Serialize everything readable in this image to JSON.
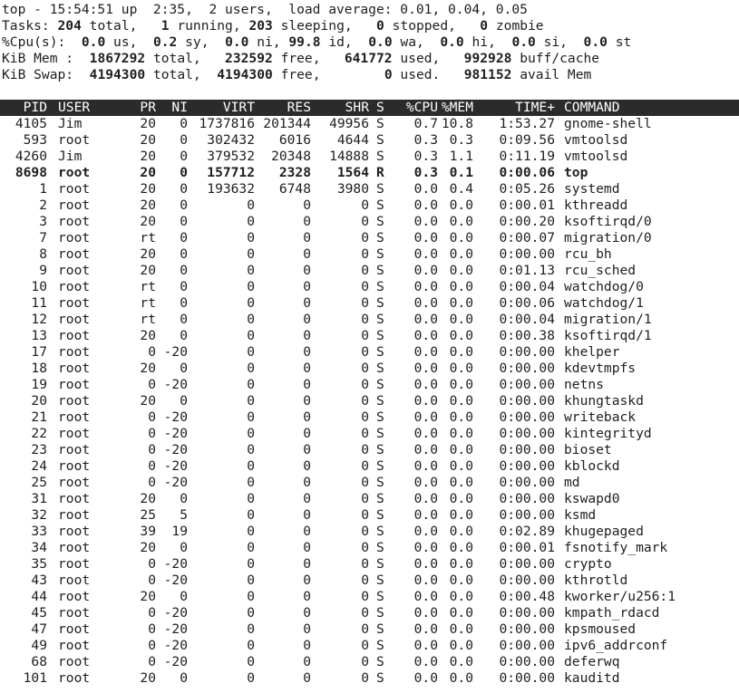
{
  "summary": {
    "line1": "top - 15:54:51 up  2:35,  2 users,  load average: 0.01, 0.04, 0.05",
    "tasks": {
      "label": "Tasks:",
      "total": "204",
      "total_l": "total,",
      "running": "1",
      "running_l": "running,",
      "sleeping": "203",
      "sleeping_l": "sleeping,",
      "stopped": "0",
      "stopped_l": "stopped,",
      "zombie": "0",
      "zombie_l": "zombie"
    },
    "cpu": {
      "label": "%Cpu(s):",
      "us": "0.0",
      "us_l": "us,",
      "sy": "0.2",
      "sy_l": "sy,",
      "ni": "0.0",
      "ni_l": "ni,",
      "id": "99.8",
      "id_l": "id,",
      "wa": "0.0",
      "wa_l": "wa,",
      "hi": "0.0",
      "hi_l": "hi,",
      "si": "0.0",
      "si_l": "si,",
      "st": "0.0",
      "st_l": "st"
    },
    "mem": {
      "label": "KiB Mem :",
      "total": "1867292",
      "total_l": "total,",
      "free": "232592",
      "free_l": "free,",
      "used": "641772",
      "used_l": "used,",
      "cache": "992928",
      "cache_l": "buff/cache"
    },
    "swap": {
      "label": "KiB Swap:",
      "total": "4194300",
      "total_l": "total,",
      "free": "4194300",
      "free_l": "free,",
      "used": "0",
      "used_l": "used.",
      "avail": "981152",
      "avail_l": "avail Mem"
    }
  },
  "columns": [
    "PID",
    "USER",
    "PR",
    "NI",
    "VIRT",
    "RES",
    "SHR",
    "S",
    "%CPU",
    "%MEM",
    "TIME+",
    "COMMAND"
  ],
  "processes": [
    [
      "4105",
      "Jim",
      "20",
      "0",
      "1737816",
      "201344",
      "49956",
      "S",
      "0.7",
      "10.8",
      "1:53.27",
      "gnome-shell"
    ],
    [
      "593",
      "root",
      "20",
      "0",
      "302432",
      "6016",
      "4644",
      "S",
      "0.3",
      "0.3",
      "0:09.56",
      "vmtoolsd"
    ],
    [
      "4260",
      "Jim",
      "20",
      "0",
      "379532",
      "20348",
      "14888",
      "S",
      "0.3",
      "1.1",
      "0:11.19",
      "vmtoolsd"
    ],
    [
      "8698",
      "root",
      "20",
      "0",
      "157712",
      "2328",
      "1564",
      "R",
      "0.3",
      "0.1",
      "0:00.06",
      "top"
    ],
    [
      "1",
      "root",
      "20",
      "0",
      "193632",
      "6748",
      "3980",
      "S",
      "0.0",
      "0.4",
      "0:05.26",
      "systemd"
    ],
    [
      "2",
      "root",
      "20",
      "0",
      "0",
      "0",
      "0",
      "S",
      "0.0",
      "0.0",
      "0:00.01",
      "kthreadd"
    ],
    [
      "3",
      "root",
      "20",
      "0",
      "0",
      "0",
      "0",
      "S",
      "0.0",
      "0.0",
      "0:00.20",
      "ksoftirqd/0"
    ],
    [
      "7",
      "root",
      "rt",
      "0",
      "0",
      "0",
      "0",
      "S",
      "0.0",
      "0.0",
      "0:00.07",
      "migration/0"
    ],
    [
      "8",
      "root",
      "20",
      "0",
      "0",
      "0",
      "0",
      "S",
      "0.0",
      "0.0",
      "0:00.00",
      "rcu_bh"
    ],
    [
      "9",
      "root",
      "20",
      "0",
      "0",
      "0",
      "0",
      "S",
      "0.0",
      "0.0",
      "0:01.13",
      "rcu_sched"
    ],
    [
      "10",
      "root",
      "rt",
      "0",
      "0",
      "0",
      "0",
      "S",
      "0.0",
      "0.0",
      "0:00.04",
      "watchdog/0"
    ],
    [
      "11",
      "root",
      "rt",
      "0",
      "0",
      "0",
      "0",
      "S",
      "0.0",
      "0.0",
      "0:00.06",
      "watchdog/1"
    ],
    [
      "12",
      "root",
      "rt",
      "0",
      "0",
      "0",
      "0",
      "S",
      "0.0",
      "0.0",
      "0:00.04",
      "migration/1"
    ],
    [
      "13",
      "root",
      "20",
      "0",
      "0",
      "0",
      "0",
      "S",
      "0.0",
      "0.0",
      "0:00.38",
      "ksoftirqd/1"
    ],
    [
      "17",
      "root",
      "0",
      "-20",
      "0",
      "0",
      "0",
      "S",
      "0.0",
      "0.0",
      "0:00.00",
      "khelper"
    ],
    [
      "18",
      "root",
      "20",
      "0",
      "0",
      "0",
      "0",
      "S",
      "0.0",
      "0.0",
      "0:00.00",
      "kdevtmpfs"
    ],
    [
      "19",
      "root",
      "0",
      "-20",
      "0",
      "0",
      "0",
      "S",
      "0.0",
      "0.0",
      "0:00.00",
      "netns"
    ],
    [
      "20",
      "root",
      "20",
      "0",
      "0",
      "0",
      "0",
      "S",
      "0.0",
      "0.0",
      "0:00.00",
      "khungtaskd"
    ],
    [
      "21",
      "root",
      "0",
      "-20",
      "0",
      "0",
      "0",
      "S",
      "0.0",
      "0.0",
      "0:00.00",
      "writeback"
    ],
    [
      "22",
      "root",
      "0",
      "-20",
      "0",
      "0",
      "0",
      "S",
      "0.0",
      "0.0",
      "0:00.00",
      "kintegrityd"
    ],
    [
      "23",
      "root",
      "0",
      "-20",
      "0",
      "0",
      "0",
      "S",
      "0.0",
      "0.0",
      "0:00.00",
      "bioset"
    ],
    [
      "24",
      "root",
      "0",
      "-20",
      "0",
      "0",
      "0",
      "S",
      "0.0",
      "0.0",
      "0:00.00",
      "kblockd"
    ],
    [
      "25",
      "root",
      "0",
      "-20",
      "0",
      "0",
      "0",
      "S",
      "0.0",
      "0.0",
      "0:00.00",
      "md"
    ],
    [
      "31",
      "root",
      "20",
      "0",
      "0",
      "0",
      "0",
      "S",
      "0.0",
      "0.0",
      "0:00.00",
      "kswapd0"
    ],
    [
      "32",
      "root",
      "25",
      "5",
      "0",
      "0",
      "0",
      "S",
      "0.0",
      "0.0",
      "0:00.00",
      "ksmd"
    ],
    [
      "33",
      "root",
      "39",
      "19",
      "0",
      "0",
      "0",
      "S",
      "0.0",
      "0.0",
      "0:02.89",
      "khugepaged"
    ],
    [
      "34",
      "root",
      "20",
      "0",
      "0",
      "0",
      "0",
      "S",
      "0.0",
      "0.0",
      "0:00.01",
      "fsnotify_mark"
    ],
    [
      "35",
      "root",
      "0",
      "-20",
      "0",
      "0",
      "0",
      "S",
      "0.0",
      "0.0",
      "0:00.00",
      "crypto"
    ],
    [
      "43",
      "root",
      "0",
      "-20",
      "0",
      "0",
      "0",
      "S",
      "0.0",
      "0.0",
      "0:00.00",
      "kthrotld"
    ],
    [
      "44",
      "root",
      "20",
      "0",
      "0",
      "0",
      "0",
      "S",
      "0.0",
      "0.0",
      "0:00.48",
      "kworker/u256:1"
    ],
    [
      "45",
      "root",
      "0",
      "-20",
      "0",
      "0",
      "0",
      "S",
      "0.0",
      "0.0",
      "0:00.00",
      "kmpath_rdacd"
    ],
    [
      "47",
      "root",
      "0",
      "-20",
      "0",
      "0",
      "0",
      "S",
      "0.0",
      "0.0",
      "0:00.00",
      "kpsmoused"
    ],
    [
      "49",
      "root",
      "0",
      "-20",
      "0",
      "0",
      "0",
      "S",
      "0.0",
      "0.0",
      "0:00.00",
      "ipv6_addrconf"
    ],
    [
      "68",
      "root",
      "0",
      "-20",
      "0",
      "0",
      "0",
      "S",
      "0.0",
      "0.0",
      "0:00.00",
      "deferwq"
    ],
    [
      "101",
      "root",
      "20",
      "0",
      "0",
      "0",
      "0",
      "S",
      "0.0",
      "0.0",
      "0:00.00",
      "kauditd"
    ]
  ],
  "colors": {
    "background": "#ffffff",
    "text": "#1e1e1e",
    "header_bg": "#2b2b2b",
    "header_text": "#ffffff"
  }
}
